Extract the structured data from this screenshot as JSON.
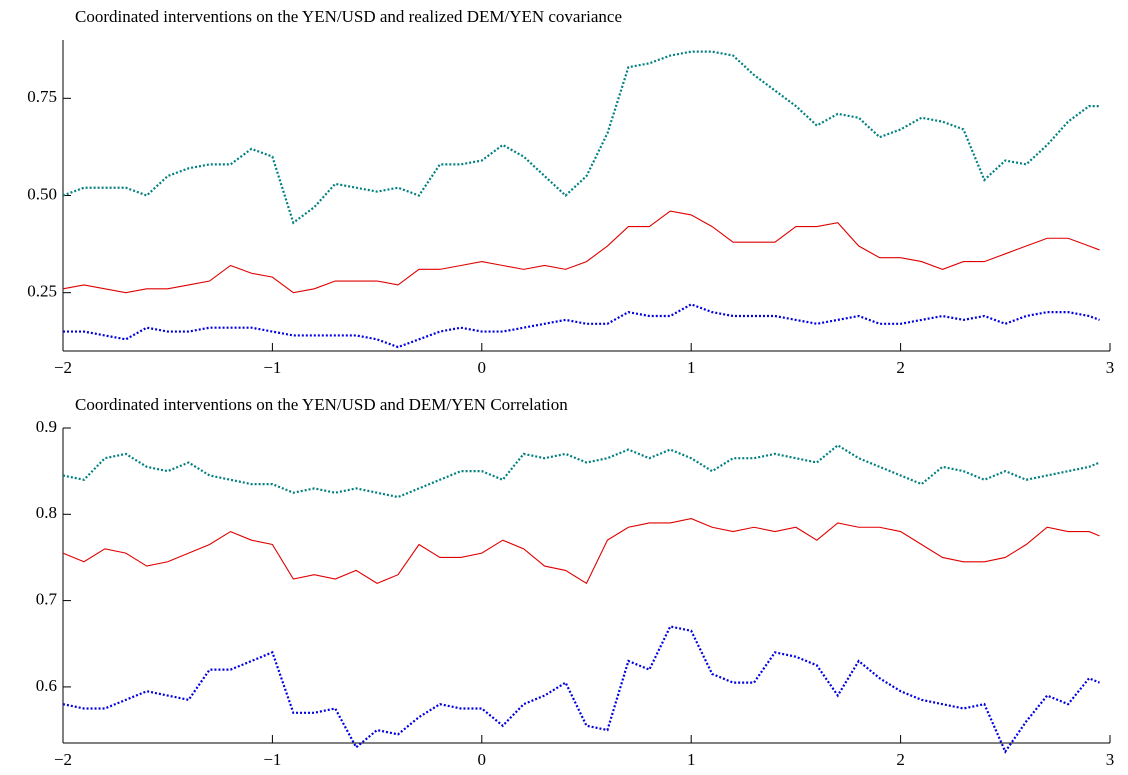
{
  "chart_data": [
    {
      "type": "line",
      "title": "Coordinated interventions on the YEN/USD and realized DEM/YEN covariance",
      "x": [
        -2,
        -1.9,
        -1.8,
        -1.7,
        -1.6,
        -1.5,
        -1.4,
        -1.3,
        -1.2,
        -1.1,
        -1,
        -0.9,
        -0.8,
        -0.7,
        -0.6,
        -0.5,
        -0.4,
        -0.3,
        -0.2,
        -0.1,
        0,
        0.1,
        0.2,
        0.3,
        0.4,
        0.5,
        0.6,
        0.7,
        0.8,
        0.9,
        1,
        1.1,
        1.2,
        1.3,
        1.4,
        1.5,
        1.6,
        1.7,
        1.8,
        1.9,
        2,
        2.1,
        2.2,
        2.3,
        2.4,
        2.5,
        2.6,
        2.7,
        2.8,
        2.9,
        2.95
      ],
      "series": [
        {
          "color": "#008080",
          "style": "dotted",
          "values": [
            0.5,
            0.52,
            0.52,
            0.52,
            0.5,
            0.55,
            0.57,
            0.58,
            0.58,
            0.62,
            0.6,
            0.43,
            0.47,
            0.53,
            0.52,
            0.51,
            0.52,
            0.5,
            0.58,
            0.58,
            0.59,
            0.63,
            0.6,
            0.55,
            0.5,
            0.55,
            0.66,
            0.83,
            0.84,
            0.86,
            0.87,
            0.87,
            0.86,
            0.81,
            0.77,
            0.73,
            0.68,
            0.71,
            0.7,
            0.65,
            0.67,
            0.7,
            0.69,
            0.67,
            0.54,
            0.59,
            0.58,
            0.63,
            0.69,
            0.73,
            0.73
          ]
        },
        {
          "color": "#e00000",
          "style": "solid",
          "values": [
            0.26,
            0.27,
            0.26,
            0.25,
            0.26,
            0.26,
            0.27,
            0.28,
            0.32,
            0.3,
            0.29,
            0.25,
            0.26,
            0.28,
            0.28,
            0.28,
            0.27,
            0.31,
            0.31,
            0.32,
            0.33,
            0.32,
            0.31,
            0.32,
            0.31,
            0.33,
            0.37,
            0.42,
            0.42,
            0.46,
            0.45,
            0.42,
            0.38,
            0.38,
            0.38,
            0.42,
            0.42,
            0.43,
            0.37,
            0.34,
            0.34,
            0.33,
            0.31,
            0.33,
            0.33,
            0.35,
            0.37,
            0.39,
            0.39,
            0.37,
            0.36
          ]
        },
        {
          "color": "#0000e0",
          "style": "dotted",
          "values": [
            0.15,
            0.15,
            0.14,
            0.13,
            0.16,
            0.15,
            0.15,
            0.16,
            0.16,
            0.16,
            0.15,
            0.14,
            0.14,
            0.14,
            0.14,
            0.13,
            0.11,
            0.13,
            0.15,
            0.16,
            0.15,
            0.15,
            0.16,
            0.17,
            0.18,
            0.17,
            0.17,
            0.2,
            0.19,
            0.19,
            0.22,
            0.2,
            0.19,
            0.19,
            0.19,
            0.18,
            0.17,
            0.18,
            0.19,
            0.17,
            0.17,
            0.18,
            0.19,
            0.18,
            0.19,
            0.17,
            0.19,
            0.2,
            0.2,
            0.19,
            0.18
          ]
        }
      ],
      "xlim": [
        -2,
        3
      ],
      "xticks": [
        {
          "value": -2,
          "label": "−2"
        },
        {
          "value": -1,
          "label": "−1"
        },
        0,
        1,
        2,
        3
      ],
      "ylim": [
        0.1,
        0.9
      ],
      "yticks": [
        0.25,
        {
          "value": 0.5,
          "label": "0.50"
        },
        0.75
      ]
    },
    {
      "type": "line",
      "title": "Coordinated interventions on the YEN/USD and DEM/YEN Correlation",
      "x": [
        -2,
        -1.9,
        -1.8,
        -1.7,
        -1.6,
        -1.5,
        -1.4,
        -1.3,
        -1.2,
        -1.1,
        -1,
        -0.9,
        -0.8,
        -0.7,
        -0.6,
        -0.5,
        -0.4,
        -0.3,
        -0.2,
        -0.1,
        0,
        0.1,
        0.2,
        0.3,
        0.4,
        0.5,
        0.6,
        0.7,
        0.8,
        0.9,
        1,
        1.1,
        1.2,
        1.3,
        1.4,
        1.5,
        1.6,
        1.7,
        1.8,
        1.9,
        2,
        2.1,
        2.2,
        2.3,
        2.4,
        2.5,
        2.6,
        2.7,
        2.8,
        2.9,
        2.95
      ],
      "series": [
        {
          "color": "#008080",
          "style": "dotted",
          "values": [
            0.845,
            0.84,
            0.865,
            0.87,
            0.855,
            0.85,
            0.86,
            0.845,
            0.84,
            0.835,
            0.835,
            0.825,
            0.83,
            0.825,
            0.83,
            0.825,
            0.82,
            0.83,
            0.84,
            0.85,
            0.85,
            0.84,
            0.87,
            0.865,
            0.87,
            0.86,
            0.865,
            0.875,
            0.865,
            0.875,
            0.865,
            0.85,
            0.865,
            0.865,
            0.87,
            0.865,
            0.86,
            0.88,
            0.865,
            0.855,
            0.845,
            0.835,
            0.855,
            0.85,
            0.84,
            0.85,
            0.84,
            0.845,
            0.85,
            0.855,
            0.86
          ]
        },
        {
          "color": "#e00000",
          "style": "solid",
          "values": [
            0.755,
            0.745,
            0.76,
            0.755,
            0.74,
            0.745,
            0.755,
            0.765,
            0.78,
            0.77,
            0.765,
            0.725,
            0.73,
            0.725,
            0.735,
            0.72,
            0.73,
            0.765,
            0.75,
            0.75,
            0.755,
            0.77,
            0.76,
            0.74,
            0.735,
            0.72,
            0.77,
            0.785,
            0.79,
            0.79,
            0.795,
            0.785,
            0.78,
            0.785,
            0.78,
            0.785,
            0.77,
            0.79,
            0.785,
            0.785,
            0.78,
            0.765,
            0.75,
            0.745,
            0.745,
            0.75,
            0.765,
            0.785,
            0.78,
            0.78,
            0.775
          ]
        },
        {
          "color": "#0000e0",
          "style": "dotted",
          "values": [
            0.58,
            0.575,
            0.575,
            0.585,
            0.595,
            0.59,
            0.585,
            0.62,
            0.62,
            0.63,
            0.64,
            0.57,
            0.57,
            0.575,
            0.53,
            0.55,
            0.545,
            0.565,
            0.58,
            0.575,
            0.575,
            0.555,
            0.58,
            0.59,
            0.605,
            0.555,
            0.55,
            0.63,
            0.62,
            0.67,
            0.665,
            0.615,
            0.605,
            0.605,
            0.64,
            0.635,
            0.625,
            0.59,
            0.63,
            0.61,
            0.595,
            0.585,
            0.58,
            0.575,
            0.58,
            0.525,
            0.56,
            0.59,
            0.58,
            0.61,
            0.605
          ]
        }
      ],
      "xlim": [
        -2,
        3
      ],
      "xticks": [
        {
          "value": -2,
          "label": "−2"
        },
        {
          "value": -1,
          "label": "−1"
        },
        0,
        1,
        2,
        3
      ],
      "ylim": [
        0.535,
        0.9
      ],
      "yticks": [
        0.6,
        0.7,
        0.8,
        0.9
      ]
    }
  ]
}
